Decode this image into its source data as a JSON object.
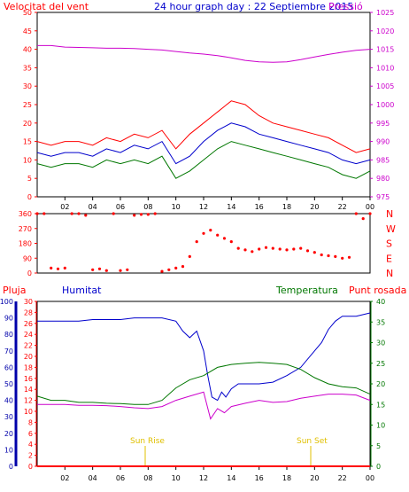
{
  "header": {
    "left_title": "Velocitat del vent",
    "center_title": "24 hour graph day : 22 Septiembre 2015",
    "right_title": "Pressió"
  },
  "colors": {
    "red": "#ff0000",
    "blue": "#0000cc",
    "green": "#007700",
    "magenta": "#cc00cc",
    "yellow": "#e0c000",
    "navy": "#0000aa",
    "axis": "#000000"
  },
  "panel_labels": {
    "pluja": "Pluja",
    "humitat": "Humitat",
    "temperatura": "Temperatura",
    "punt_rosada": "Punt rosada",
    "sun_rise": "Sun Rise",
    "sun_set": "Sun Set"
  },
  "chart_data": [
    {
      "type": "line",
      "name": "wind",
      "x_ticks": [
        "02",
        "04",
        "06",
        "08",
        "10",
        "12",
        "14",
        "16",
        "18",
        "20",
        "22",
        "00"
      ],
      "y_left_ticks": [
        0,
        5,
        10,
        15,
        20,
        25,
        30,
        35,
        40,
        45,
        50
      ],
      "ylim_left": [
        0,
        50
      ],
      "y_right_ticks": [
        975,
        980,
        985,
        990,
        995,
        1000,
        1005,
        1010,
        1015,
        1020,
        1025
      ],
      "ylim_right": [
        975,
        1025
      ],
      "series": [
        {
          "name": "gust",
          "color": "red",
          "x": [
            0,
            1,
            2,
            3,
            4,
            5,
            6,
            7,
            8,
            9,
            10,
            11,
            12,
            13,
            14,
            15,
            16,
            17,
            18,
            19,
            20,
            21,
            22,
            23,
            24
          ],
          "values": [
            15,
            14,
            15,
            15,
            14,
            16,
            15,
            17,
            16,
            18,
            13,
            17,
            20,
            23,
            26,
            25,
            22,
            20,
            19,
            18,
            17,
            16,
            14,
            12,
            13
          ]
        },
        {
          "name": "avg",
          "color": "blue",
          "x": [
            0,
            1,
            2,
            3,
            4,
            5,
            6,
            7,
            8,
            9,
            10,
            11,
            12,
            13,
            14,
            15,
            16,
            17,
            18,
            19,
            20,
            21,
            22,
            23,
            24
          ],
          "values": [
            12,
            11,
            12,
            12,
            11,
            13,
            12,
            14,
            13,
            15,
            9,
            11,
            15,
            18,
            20,
            19,
            17,
            16,
            15,
            14,
            13,
            12,
            10,
            9,
            10
          ]
        },
        {
          "name": "min",
          "color": "green",
          "x": [
            0,
            1,
            2,
            3,
            4,
            5,
            6,
            7,
            8,
            9,
            10,
            11,
            12,
            13,
            14,
            15,
            16,
            17,
            18,
            19,
            20,
            21,
            22,
            23,
            24
          ],
          "values": [
            9,
            8,
            9,
            9,
            8,
            10,
            9,
            10,
            9,
            11,
            5,
            7,
            10,
            13,
            15,
            14,
            13,
            12,
            11,
            10,
            9,
            8,
            6,
            5,
            7
          ]
        },
        {
          "name": "pressure",
          "color": "magenta",
          "axis": "right",
          "x": [
            0,
            1,
            2,
            3,
            4,
            5,
            6,
            7,
            8,
            9,
            10,
            11,
            12,
            13,
            14,
            15,
            16,
            17,
            18,
            19,
            20,
            21,
            22,
            23,
            24
          ],
          "values": [
            1016,
            1016,
            1015.6,
            1015.5,
            1015.4,
            1015.3,
            1015.3,
            1015.2,
            1015,
            1014.8,
            1014.4,
            1014,
            1013.7,
            1013.3,
            1012.7,
            1012,
            1011.6,
            1011.5,
            1011.6,
            1012.2,
            1012.9,
            1013.6,
            1014.2,
            1014.7,
            1015
          ]
        }
      ]
    },
    {
      "type": "scatter",
      "name": "wind_direction",
      "y_left_ticks": [
        0,
        90,
        180,
        270,
        360
      ],
      "ylim": [
        0,
        360
      ],
      "right_labels": [
        "N",
        "W",
        "S",
        "E",
        "N"
      ],
      "series": [
        {
          "name": "direction",
          "color": "red",
          "x": [
            0,
            0.5,
            1,
            1.5,
            2,
            2.5,
            3,
            3.5,
            4,
            4.5,
            5,
            5.5,
            6,
            6.5,
            7,
            7.5,
            8,
            8.5,
            9,
            9.5,
            10,
            10.5,
            11,
            11.5,
            12,
            12.5,
            13,
            13.5,
            14,
            14.5,
            15,
            15.5,
            16,
            16.5,
            17,
            17.5,
            18,
            18.5,
            19,
            19.5,
            20,
            20.5,
            21,
            21.5,
            22,
            22.5,
            23,
            23.5,
            24
          ],
          "values": [
            360,
            360,
            30,
            25,
            30,
            360,
            360,
            350,
            20,
            25,
            15,
            360,
            15,
            20,
            350,
            355,
            355,
            360,
            10,
            20,
            30,
            40,
            100,
            190,
            240,
            260,
            230,
            210,
            190,
            150,
            140,
            130,
            145,
            155,
            150,
            145,
            140,
            145,
            150,
            135,
            125,
            110,
            105,
            100,
            90,
            95,
            360,
            330,
            360
          ]
        }
      ]
    },
    {
      "type": "line",
      "name": "humidity_temp",
      "y_rain_ticks": [
        0,
        2,
        4,
        6,
        8,
        10,
        12,
        14,
        16,
        18,
        20,
        22,
        24,
        26,
        28,
        30
      ],
      "y_hum_ticks": [
        0,
        10,
        20,
        30,
        40,
        50,
        60,
        70,
        80,
        90,
        100
      ],
      "y_temp_ticks": [
        0,
        5,
        10,
        15,
        20,
        25,
        30,
        35,
        40
      ],
      "ylim_hum": [
        0,
        100
      ],
      "ylim_temp": [
        0,
        40
      ],
      "series": [
        {
          "name": "Humitat",
          "color": "blue",
          "axis": "hum",
          "x": [
            0,
            1,
            2,
            3,
            4,
            5,
            6,
            7,
            8,
            9,
            10,
            10.5,
            11,
            11.5,
            12,
            12.3,
            12.6,
            13,
            13.3,
            13.6,
            14,
            14.5,
            15,
            16,
            17,
            18,
            19,
            20,
            20.5,
            21,
            21.5,
            22,
            22.5,
            23,
            23.5,
            24
          ],
          "values": [
            88,
            88,
            88,
            88,
            89,
            89,
            89,
            90,
            90,
            90,
            88,
            82,
            78,
            82,
            70,
            55,
            42,
            40,
            45,
            42,
            47,
            50,
            50,
            50,
            51,
            55,
            60,
            70,
            75,
            83,
            88,
            91,
            91,
            91,
            92,
            93
          ]
        },
        {
          "name": "Temperatura",
          "color": "green",
          "axis": "temp",
          "x": [
            0,
            1,
            2,
            3,
            4,
            5,
            6,
            7,
            8,
            9,
            10,
            11,
            12,
            13,
            14,
            15,
            16,
            17,
            18,
            19,
            20,
            21,
            22,
            23,
            24
          ],
          "values": [
            17,
            16,
            16,
            15.5,
            15.5,
            15.3,
            15.2,
            15,
            15,
            16,
            19,
            21,
            22,
            24,
            24.7,
            25,
            25.2,
            25,
            24.7,
            23.5,
            21.5,
            20,
            19.3,
            19,
            17.5
          ]
        },
        {
          "name": "Punt rosada",
          "color": "magenta",
          "axis": "temp",
          "x": [
            0,
            1,
            2,
            3,
            4,
            5,
            6,
            7,
            8,
            9,
            10,
            11,
            12,
            12.5,
            13,
            13.5,
            14,
            15,
            16,
            17,
            18,
            19,
            20,
            21,
            22,
            23,
            24
          ],
          "values": [
            15,
            15,
            15,
            14.8,
            14.8,
            14.7,
            14.5,
            14.2,
            14,
            14.5,
            16,
            17,
            18,
            11.5,
            14,
            13,
            14.5,
            15.3,
            16,
            15.5,
            15.7,
            16.5,
            17,
            17.5,
            17.5,
            17.3,
            16
          ]
        },
        {
          "name": "Pluja",
          "color": "red",
          "axis": "rain",
          "x": [
            0,
            24
          ],
          "values": [
            0,
            0
          ]
        }
      ]
    }
  ]
}
